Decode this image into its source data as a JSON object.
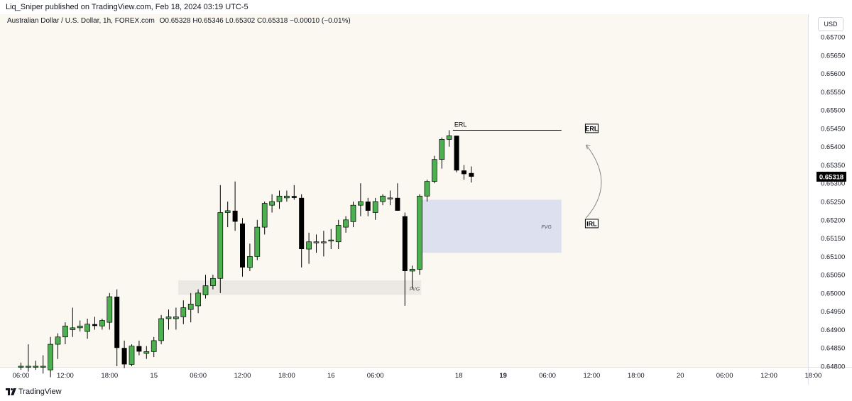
{
  "header": {
    "published": "Liq_Sniper published on TradingView.com, Feb 18, 2024 03:19 UTC-5"
  },
  "legend": {
    "symbol": "Australian Dollar / U.S. Dollar, 1h, FOREX.com",
    "ohlc": "O0.65328 H0.65346 L0.65302 C0.65318 −0.00010 (−0.01%)"
  },
  "currency_button": "USD",
  "footer": {
    "brand": "TradingView"
  },
  "colors": {
    "background": "#fbf8f1",
    "bull": "#4caf50",
    "bear": "#000000",
    "fvg_upper": "#dde1ef",
    "fvg_lower": "#ece8e3",
    "price_tag": "#000000"
  },
  "chart_data": {
    "type": "candlestick",
    "timeframe": "1h",
    "symbol": "AUDUSD",
    "ylim": [
      0.648,
      0.65745
    ],
    "y_ticks": [
      "0.65700",
      "0.65650",
      "0.65600",
      "0.65550",
      "0.65500",
      "0.65450",
      "0.65400",
      "0.65350",
      "0.65300",
      "0.65250",
      "0.65200",
      "0.65150",
      "0.65100",
      "0.65050",
      "0.65000",
      "0.64950",
      "0.64900",
      "0.64850",
      "0.64800"
    ],
    "x_ticks": [
      {
        "label": "06:00",
        "bar": 0,
        "bold": false
      },
      {
        "label": "12:00",
        "bar": 6,
        "bold": false
      },
      {
        "label": "18:00",
        "bar": 12,
        "bold": false
      },
      {
        "label": "15",
        "bar": 18,
        "bold": false
      },
      {
        "label": "06:00",
        "bar": 24,
        "bold": false
      },
      {
        "label": "12:00",
        "bar": 30,
        "bold": false
      },
      {
        "label": "18:00",
        "bar": 36,
        "bold": false
      },
      {
        "label": "16",
        "bar": 42,
        "bold": false
      },
      {
        "label": "06:00",
        "bar": 48,
        "bold": false
      },
      {
        "label": "18",
        "bar": 59.3,
        "bold": false
      },
      {
        "label": "19",
        "bar": 65.3,
        "bold": true
      },
      {
        "label": "06:00",
        "bar": 71.3,
        "bold": false
      },
      {
        "label": "12:00",
        "bar": 77.3,
        "bold": false
      },
      {
        "label": "18:00",
        "bar": 83.3,
        "bold": false
      },
      {
        "label": "20",
        "bar": 89.3,
        "bold": false
      },
      {
        "label": "06:00",
        "bar": 95.3,
        "bold": false
      },
      {
        "label": "12:00",
        "bar": 101.3,
        "bold": false
      },
      {
        "label": "18:00",
        "bar": 107.3,
        "bold": false
      }
    ],
    "last_price": "0.65318",
    "candles": [
      {
        "o": 0.648,
        "h": 0.6481,
        "l": 0.6479,
        "c": 0.648
      },
      {
        "o": 0.648,
        "h": 0.6486,
        "l": 0.64785,
        "c": 0.648
      },
      {
        "o": 0.648,
        "h": 0.64815,
        "l": 0.6479,
        "c": 0.648
      },
      {
        "o": 0.648,
        "h": 0.6483,
        "l": 0.6478,
        "c": 0.648
      },
      {
        "o": 0.6479,
        "h": 0.6488,
        "l": 0.6477,
        "c": 0.6486
      },
      {
        "o": 0.6486,
        "h": 0.6489,
        "l": 0.6482,
        "c": 0.6488
      },
      {
        "o": 0.6488,
        "h": 0.6492,
        "l": 0.6486,
        "c": 0.6491
      },
      {
        "o": 0.649,
        "h": 0.6496,
        "l": 0.6488,
        "c": 0.64905
      },
      {
        "o": 0.64905,
        "h": 0.64925,
        "l": 0.64895,
        "c": 0.6491
      },
      {
        "o": 0.64895,
        "h": 0.6493,
        "l": 0.64875,
        "c": 0.64915
      },
      {
        "o": 0.64915,
        "h": 0.64935,
        "l": 0.649,
        "c": 0.6491
      },
      {
        "o": 0.6491,
        "h": 0.6493,
        "l": 0.649,
        "c": 0.64925
      },
      {
        "o": 0.6492,
        "h": 0.65,
        "l": 0.649,
        "c": 0.6499
      },
      {
        "o": 0.6499,
        "h": 0.6501,
        "l": 0.648,
        "c": 0.6485
      },
      {
        "o": 0.6485,
        "h": 0.6487,
        "l": 0.64795,
        "c": 0.64805
      },
      {
        "o": 0.64805,
        "h": 0.6486,
        "l": 0.648,
        "c": 0.64855
      },
      {
        "o": 0.64855,
        "h": 0.6487,
        "l": 0.6483,
        "c": 0.6484
      },
      {
        "o": 0.64835,
        "h": 0.64855,
        "l": 0.6482,
        "c": 0.6484
      },
      {
        "o": 0.6484,
        "h": 0.6488,
        "l": 0.64825,
        "c": 0.6487
      },
      {
        "o": 0.6487,
        "h": 0.6494,
        "l": 0.6486,
        "c": 0.6493
      },
      {
        "o": 0.6493,
        "h": 0.64955,
        "l": 0.649,
        "c": 0.64935
      },
      {
        "o": 0.6493,
        "h": 0.6496,
        "l": 0.649,
        "c": 0.64935
      },
      {
        "o": 0.64935,
        "h": 0.6498,
        "l": 0.64915,
        "c": 0.6496
      },
      {
        "o": 0.64955,
        "h": 0.65,
        "l": 0.6492,
        "c": 0.6497
      },
      {
        "o": 0.64965,
        "h": 0.6501,
        "l": 0.64945,
        "c": 0.65
      },
      {
        "o": 0.64995,
        "h": 0.6505,
        "l": 0.64985,
        "c": 0.6502
      },
      {
        "o": 0.6502,
        "h": 0.6505,
        "l": 0.6501,
        "c": 0.6504
      },
      {
        "o": 0.6504,
        "h": 0.65295,
        "l": 0.65,
        "c": 0.6522
      },
      {
        "o": 0.6522,
        "h": 0.6525,
        "l": 0.6518,
        "c": 0.65225
      },
      {
        "o": 0.65225,
        "h": 0.65305,
        "l": 0.6517,
        "c": 0.65195
      },
      {
        "o": 0.6519,
        "h": 0.65205,
        "l": 0.65045,
        "c": 0.6507
      },
      {
        "o": 0.6507,
        "h": 0.65135,
        "l": 0.6506,
        "c": 0.651
      },
      {
        "o": 0.651,
        "h": 0.652,
        "l": 0.6509,
        "c": 0.6518
      },
      {
        "o": 0.6518,
        "h": 0.6525,
        "l": 0.6516,
        "c": 0.65245
      },
      {
        "o": 0.6524,
        "h": 0.6527,
        "l": 0.6522,
        "c": 0.6525
      },
      {
        "o": 0.6525,
        "h": 0.6528,
        "l": 0.6523,
        "c": 0.65265
      },
      {
        "o": 0.6526,
        "h": 0.6528,
        "l": 0.6525,
        "c": 0.65265
      },
      {
        "o": 0.65265,
        "h": 0.65295,
        "l": 0.65255,
        "c": 0.6526
      },
      {
        "o": 0.6526,
        "h": 0.6527,
        "l": 0.6507,
        "c": 0.6512
      },
      {
        "o": 0.6512,
        "h": 0.65165,
        "l": 0.6508,
        "c": 0.6514
      },
      {
        "o": 0.6514,
        "h": 0.6516,
        "l": 0.6511,
        "c": 0.6514
      },
      {
        "o": 0.6514,
        "h": 0.6517,
        "l": 0.651,
        "c": 0.6514
      },
      {
        "o": 0.65145,
        "h": 0.65175,
        "l": 0.6512,
        "c": 0.65145
      },
      {
        "o": 0.6514,
        "h": 0.652,
        "l": 0.6512,
        "c": 0.65185
      },
      {
        "o": 0.6518,
        "h": 0.6521,
        "l": 0.65165,
        "c": 0.652
      },
      {
        "o": 0.65195,
        "h": 0.6525,
        "l": 0.6518,
        "c": 0.6524
      },
      {
        "o": 0.6524,
        "h": 0.653,
        "l": 0.6521,
        "c": 0.6525
      },
      {
        "o": 0.6525,
        "h": 0.6526,
        "l": 0.6521,
        "c": 0.65225
      },
      {
        "o": 0.6522,
        "h": 0.6526,
        "l": 0.652,
        "c": 0.6525
      },
      {
        "o": 0.6525,
        "h": 0.6527,
        "l": 0.6524,
        "c": 0.65265
      },
      {
        "o": 0.6526,
        "h": 0.6528,
        "l": 0.6524,
        "c": 0.6526
      },
      {
        "o": 0.6526,
        "h": 0.653,
        "l": 0.65225,
        "c": 0.65225
      },
      {
        "o": 0.6521,
        "h": 0.6522,
        "l": 0.64965,
        "c": 0.6506
      },
      {
        "o": 0.6506,
        "h": 0.65075,
        "l": 0.6501,
        "c": 0.65065
      },
      {
        "o": 0.65065,
        "h": 0.6527,
        "l": 0.6505,
        "c": 0.65265
      },
      {
        "o": 0.65265,
        "h": 0.6531,
        "l": 0.6525,
        "c": 0.65305
      },
      {
        "o": 0.65305,
        "h": 0.65375,
        "l": 0.653,
        "c": 0.65365
      },
      {
        "o": 0.65365,
        "h": 0.65425,
        "l": 0.6534,
        "c": 0.6542
      },
      {
        "o": 0.6542,
        "h": 0.65445,
        "l": 0.654,
        "c": 0.6543
      },
      {
        "o": 0.6543,
        "h": 0.6543,
        "l": 0.6533,
        "c": 0.65335
      },
      {
        "o": 0.65335,
        "h": 0.6535,
        "l": 0.6531,
        "c": 0.65325
      },
      {
        "o": 0.65328,
        "h": 0.65346,
        "l": 0.65302,
        "c": 0.65318
      }
    ],
    "zones": [
      {
        "label": "FVG",
        "bar_start": 54.3,
        "bar_end": 73.2,
        "top": 0.65255,
        "bottom": 0.6511,
        "color": "#dde1ef"
      },
      {
        "label": "FVG",
        "bar_start": 21.3,
        "bar_end": 54.2,
        "top": 0.65035,
        "bottom": 0.64995,
        "color": "#ece8e3"
      }
    ],
    "levels": [
      {
        "label": "ERL",
        "price": 0.65445,
        "bar_start": 58.5,
        "bar_end": 73.2
      }
    ],
    "annotations": [
      {
        "label": "ERL",
        "price": 0.6545,
        "bar": 77.3,
        "boxed": true
      },
      {
        "label": "IRL",
        "price": 0.6519,
        "bar": 77.3,
        "boxed": true
      }
    ]
  }
}
